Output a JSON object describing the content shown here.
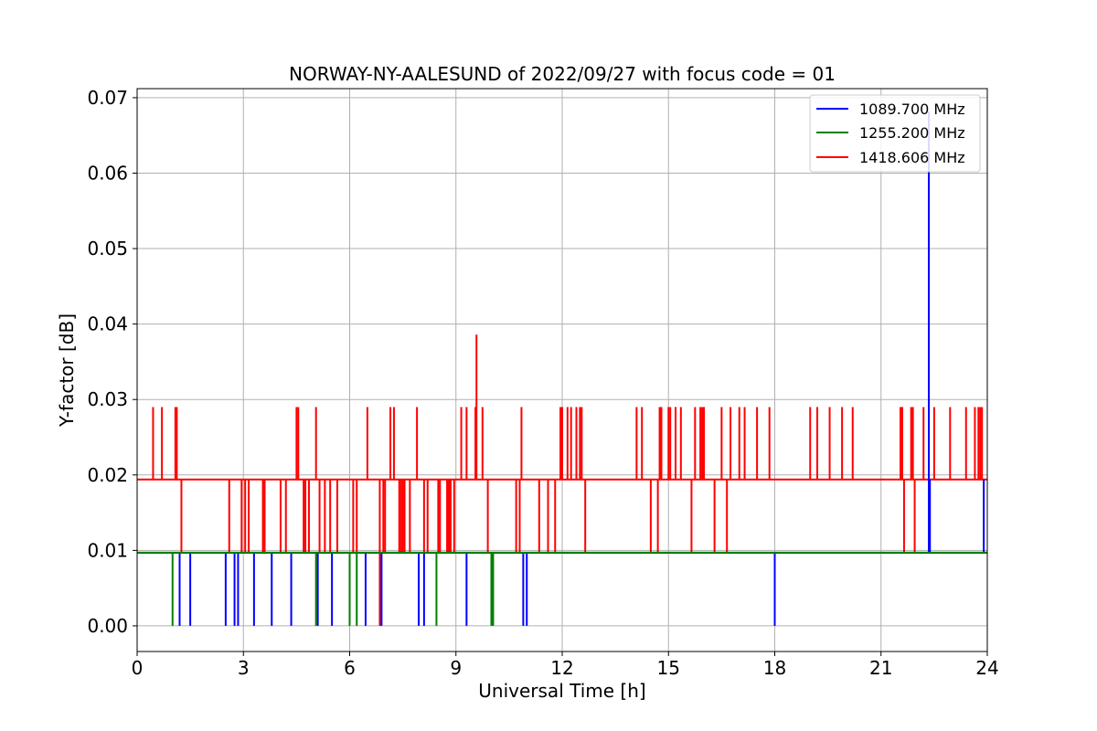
{
  "chart_data": {
    "type": "line",
    "title": "NORWAY-NY-AALESUND of 2022/09/27 with focus code = 01",
    "xlabel": "Universal Time [h]",
    "ylabel": "Y-factor [dB]",
    "xlim": [
      0,
      24
    ],
    "ylim": [
      -0.0034,
      0.0712
    ],
    "xticks": [
      0,
      3,
      6,
      9,
      12,
      15,
      18,
      21,
      24
    ],
    "xtick_labels": [
      "0",
      "3",
      "6",
      "9",
      "12",
      "15",
      "18",
      "21",
      "24"
    ],
    "yticks": [
      0.0,
      0.01,
      0.02,
      0.03,
      0.04,
      0.05,
      0.06,
      0.07
    ],
    "ytick_labels": [
      "0.00",
      "0.01",
      "0.02",
      "0.03",
      "0.04",
      "0.05",
      "0.06",
      "0.07"
    ],
    "grid": true,
    "legend_position": "top-right",
    "series": [
      {
        "name": "1089.700 MHz",
        "color": "#0000ff",
        "baseline": 0.0097,
        "spikes": [
          {
            "x": 1.2,
            "y": 0.0
          },
          {
            "x": 1.5,
            "y": 0.0
          },
          {
            "x": 2.5,
            "y": 0.0
          },
          {
            "x": 2.75,
            "y": 0.0
          },
          {
            "x": 2.85,
            "y": 0.0
          },
          {
            "x": 3.3,
            "y": 0.0
          },
          {
            "x": 3.8,
            "y": 0.0
          },
          {
            "x": 4.35,
            "y": 0.0
          },
          {
            "x": 5.1,
            "y": 0.0
          },
          {
            "x": 5.5,
            "y": 0.0
          },
          {
            "x": 6.45,
            "y": 0.0
          },
          {
            "x": 6.9,
            "y": 0.0
          },
          {
            "x": 7.95,
            "y": 0.0
          },
          {
            "x": 8.1,
            "y": 0.0
          },
          {
            "x": 9.3,
            "y": 0.0
          },
          {
            "x": 10.9,
            "y": 0.0
          },
          {
            "x": 11.0,
            "y": 0.0
          },
          {
            "x": 18.0,
            "y": 0.0
          },
          {
            "x": 22.35,
            "y": 0.0682
          },
          {
            "x": 22.38,
            "y": 0.0194
          },
          {
            "x": 23.9,
            "y": 0.0194
          }
        ]
      },
      {
        "name": "1255.200 MHz",
        "color": "#008000",
        "baseline": 0.0097,
        "spikes": [
          {
            "x": 1.0,
            "y": 0.0
          },
          {
            "x": 5.05,
            "y": 0.0
          },
          {
            "x": 6.0,
            "y": 0.0
          },
          {
            "x": 6.2,
            "y": 0.0
          },
          {
            "x": 8.45,
            "y": 0.0
          },
          {
            "x": 10.0,
            "y": 0.0
          },
          {
            "x": 10.05,
            "y": 0.0
          }
        ]
      },
      {
        "name": "1418.606 MHz",
        "color": "#ff0000",
        "baseline": 0.0194,
        "spikes": [
          {
            "x": 0.45,
            "y": 0.029
          },
          {
            "x": 0.7,
            "y": 0.029
          },
          {
            "x": 1.08,
            "y": 0.029
          },
          {
            "x": 1.12,
            "y": 0.029
          },
          {
            "x": 1.25,
            "y": 0.0097
          },
          {
            "x": 2.6,
            "y": 0.0097
          },
          {
            "x": 2.95,
            "y": 0.0097
          },
          {
            "x": 3.05,
            "y": 0.0097
          },
          {
            "x": 3.15,
            "y": 0.0097
          },
          {
            "x": 3.55,
            "y": 0.0097
          },
          {
            "x": 3.6,
            "y": 0.0097
          },
          {
            "x": 4.05,
            "y": 0.0097
          },
          {
            "x": 4.2,
            "y": 0.0097
          },
          {
            "x": 4.5,
            "y": 0.029
          },
          {
            "x": 4.55,
            "y": 0.029
          },
          {
            "x": 4.7,
            "y": 0.0097
          },
          {
            "x": 4.75,
            "y": 0.0097
          },
          {
            "x": 4.85,
            "y": 0.0097
          },
          {
            "x": 5.05,
            "y": 0.029
          },
          {
            "x": 5.15,
            "y": 0.0097
          },
          {
            "x": 5.3,
            "y": 0.0097
          },
          {
            "x": 5.45,
            "y": 0.0097
          },
          {
            "x": 5.65,
            "y": 0.0097
          },
          {
            "x": 6.1,
            "y": 0.0097
          },
          {
            "x": 6.2,
            "y": 0.0097
          },
          {
            "x": 6.5,
            "y": 0.029
          },
          {
            "x": 6.85,
            "y": 0.0
          },
          {
            "x": 6.95,
            "y": 0.0097
          },
          {
            "x": 7.0,
            "y": 0.0097
          },
          {
            "x": 7.15,
            "y": 0.029
          },
          {
            "x": 7.25,
            "y": 0.029
          },
          {
            "x": 7.4,
            "y": 0.0097
          },
          {
            "x": 7.45,
            "y": 0.0097
          },
          {
            "x": 7.5,
            "y": 0.0097
          },
          {
            "x": 7.55,
            "y": 0.0097
          },
          {
            "x": 7.7,
            "y": 0.0097
          },
          {
            "x": 7.9,
            "y": 0.029
          },
          {
            "x": 8.1,
            "y": 0.0097
          },
          {
            "x": 8.2,
            "y": 0.0097
          },
          {
            "x": 8.5,
            "y": 0.0097
          },
          {
            "x": 8.55,
            "y": 0.0097
          },
          {
            "x": 8.75,
            "y": 0.0097
          },
          {
            "x": 8.8,
            "y": 0.0097
          },
          {
            "x": 8.85,
            "y": 0.0097
          },
          {
            "x": 8.95,
            "y": 0.0097
          },
          {
            "x": 9.15,
            "y": 0.029
          },
          {
            "x": 9.3,
            "y": 0.029
          },
          {
            "x": 9.55,
            "y": 0.029
          },
          {
            "x": 9.58,
            "y": 0.0386
          },
          {
            "x": 9.75,
            "y": 0.029
          },
          {
            "x": 9.9,
            "y": 0.0097
          },
          {
            "x": 10.7,
            "y": 0.0097
          },
          {
            "x": 10.8,
            "y": 0.0097
          },
          {
            "x": 10.85,
            "y": 0.029
          },
          {
            "x": 11.35,
            "y": 0.0097
          },
          {
            "x": 11.6,
            "y": 0.0097
          },
          {
            "x": 11.8,
            "y": 0.0097
          },
          {
            "x": 11.95,
            "y": 0.029
          },
          {
            "x": 12.0,
            "y": 0.029
          },
          {
            "x": 12.15,
            "y": 0.029
          },
          {
            "x": 12.25,
            "y": 0.029
          },
          {
            "x": 12.4,
            "y": 0.029
          },
          {
            "x": 12.5,
            "y": 0.029
          },
          {
            "x": 12.55,
            "y": 0.029
          },
          {
            "x": 12.65,
            "y": 0.0097
          },
          {
            "x": 14.1,
            "y": 0.029
          },
          {
            "x": 14.25,
            "y": 0.029
          },
          {
            "x": 14.5,
            "y": 0.0097
          },
          {
            "x": 14.7,
            "y": 0.0097
          },
          {
            "x": 14.75,
            "y": 0.029
          },
          {
            "x": 14.8,
            "y": 0.029
          },
          {
            "x": 15.0,
            "y": 0.029
          },
          {
            "x": 15.05,
            "y": 0.029
          },
          {
            "x": 15.2,
            "y": 0.029
          },
          {
            "x": 15.35,
            "y": 0.029
          },
          {
            "x": 15.65,
            "y": 0.0097
          },
          {
            "x": 15.75,
            "y": 0.029
          },
          {
            "x": 15.9,
            "y": 0.029
          },
          {
            "x": 15.95,
            "y": 0.029
          },
          {
            "x": 16.0,
            "y": 0.029
          },
          {
            "x": 16.3,
            "y": 0.0097
          },
          {
            "x": 16.5,
            "y": 0.029
          },
          {
            "x": 16.65,
            "y": 0.0097
          },
          {
            "x": 16.75,
            "y": 0.029
          },
          {
            "x": 17.0,
            "y": 0.029
          },
          {
            "x": 17.15,
            "y": 0.029
          },
          {
            "x": 17.5,
            "y": 0.029
          },
          {
            "x": 17.85,
            "y": 0.029
          },
          {
            "x": 19.0,
            "y": 0.029
          },
          {
            "x": 19.2,
            "y": 0.029
          },
          {
            "x": 19.55,
            "y": 0.029
          },
          {
            "x": 19.9,
            "y": 0.029
          },
          {
            "x": 20.2,
            "y": 0.029
          },
          {
            "x": 21.55,
            "y": 0.029
          },
          {
            "x": 21.6,
            "y": 0.029
          },
          {
            "x": 21.65,
            "y": 0.0097
          },
          {
            "x": 21.85,
            "y": 0.029
          },
          {
            "x": 21.9,
            "y": 0.029
          },
          {
            "x": 21.95,
            "y": 0.0097
          },
          {
            "x": 22.2,
            "y": 0.029
          },
          {
            "x": 22.5,
            "y": 0.029
          },
          {
            "x": 22.95,
            "y": 0.029
          },
          {
            "x": 23.4,
            "y": 0.029
          },
          {
            "x": 23.65,
            "y": 0.029
          },
          {
            "x": 23.75,
            "y": 0.029
          },
          {
            "x": 23.8,
            "y": 0.029
          },
          {
            "x": 23.85,
            "y": 0.029
          }
        ]
      }
    ]
  }
}
